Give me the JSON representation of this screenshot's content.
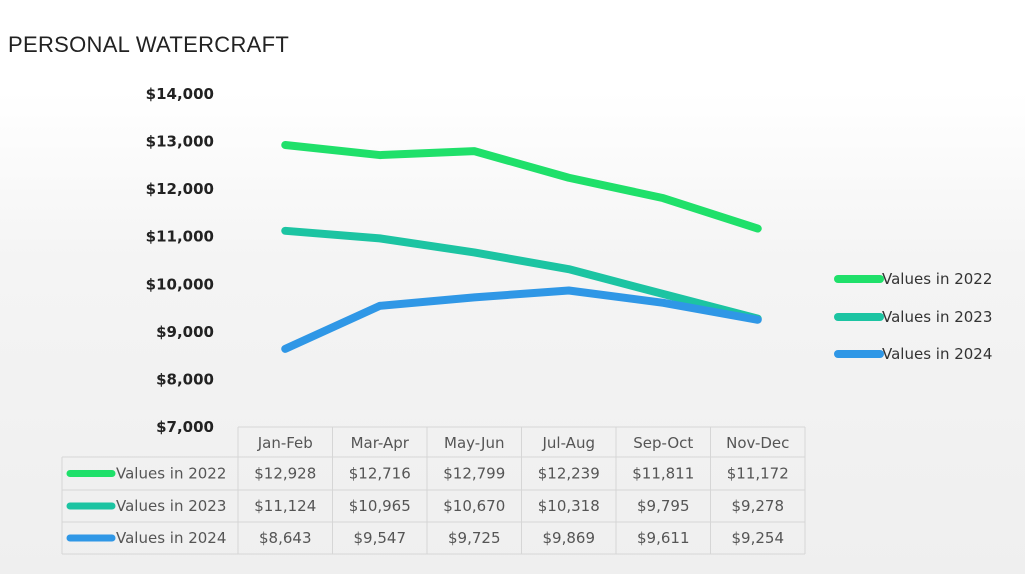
{
  "title": "PERSONAL WATERCRAFT",
  "colors": {
    "series_2022": "#1fe06a",
    "series_2023": "#1cc4a2",
    "series_2024": "#2f97e6"
  },
  "chart_data": {
    "type": "line",
    "title": "PERSONAL WATERCRAFT",
    "xlabel": "",
    "ylabel": "",
    "categories": [
      "Jan-Feb",
      "Mar-Apr",
      "May-Jun",
      "Jul-Aug",
      "Sep-Oct",
      "Nov-Dec"
    ],
    "ylim": [
      7000,
      14000
    ],
    "yticks": [
      {
        "value": 14000,
        "label": "$14,000"
      },
      {
        "value": 13000,
        "label": "$13,000"
      },
      {
        "value": 12000,
        "label": "$12,000"
      },
      {
        "value": 11000,
        "label": "$11,000"
      },
      {
        "value": 10000,
        "label": "$10,000"
      },
      {
        "value": 9000,
        "label": "$9,000"
      },
      {
        "value": 8000,
        "label": "$8,000"
      },
      {
        "value": 7000,
        "label": "$7,000"
      }
    ],
    "legend_position": "right",
    "data_table": true,
    "series": [
      {
        "name": "Values in 2022",
        "color": "#1fe06a",
        "values": [
          12928,
          12716,
          12799,
          12239,
          11811,
          11172
        ],
        "labels": [
          "$12,928",
          "$12,716",
          "$12,799",
          "$12,239",
          "$11,811",
          "$11,172"
        ]
      },
      {
        "name": "Values in 2023",
        "color": "#1cc4a2",
        "values": [
          11124,
          10965,
          10670,
          10318,
          9795,
          9278
        ],
        "labels": [
          "$11,124",
          "$10,965",
          "$10,670",
          "$10,318",
          "$9,795",
          "$9,278"
        ]
      },
      {
        "name": "Values in 2024",
        "color": "#2f97e6",
        "values": [
          8643,
          9547,
          9725,
          9869,
          9611,
          9254
        ],
        "labels": [
          "$8,643",
          "$9,547",
          "$9,725",
          "$9,869",
          "$9,611",
          "$9,254"
        ]
      }
    ]
  }
}
